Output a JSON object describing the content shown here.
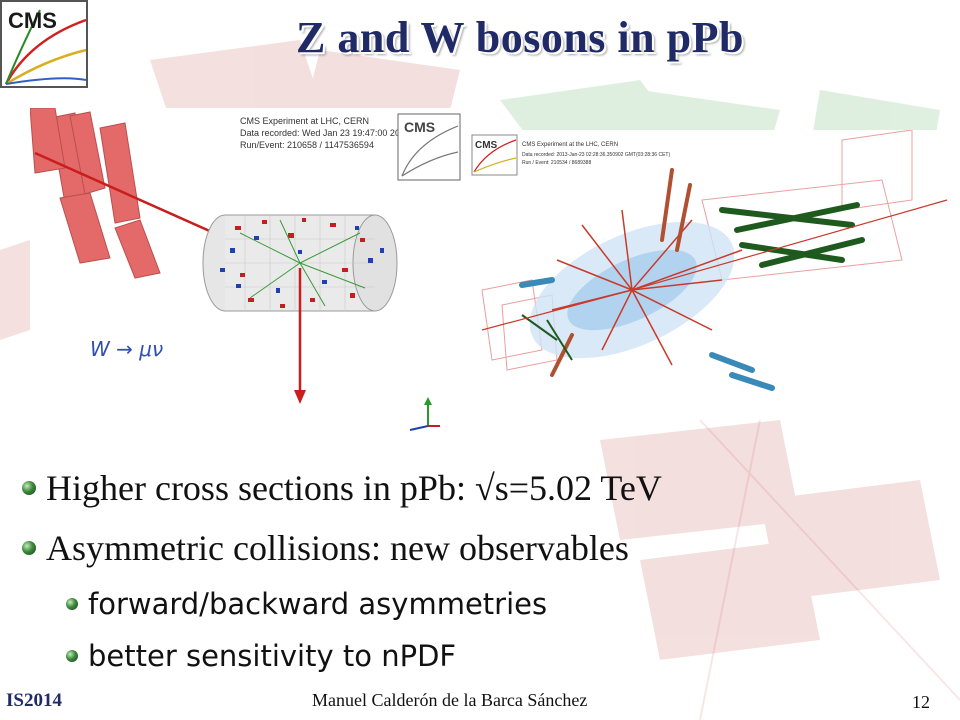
{
  "slide": {
    "title": "Z and W bosons in pPb",
    "logo_text": "CMS",
    "event_left": {
      "info_line1": "CMS Experiment at LHC, CERN",
      "info_line2": "Data recorded: Wed Jan 23 19:47:00 2013 CEST",
      "info_line3": "Run/Event: 210658 / 1147536594",
      "channel_label": "W → μν"
    },
    "event_right": {
      "info_line1": "CMS Experiment at the LHC, CERN",
      "info_line2": "Data recorded: 2013-Jan-23 02:28:36.350902 GMT(03:28:36 CET)",
      "info_line3": "Run / Event: 210534 / 8689388"
    },
    "bullets": [
      {
        "text": "Higher cross sections in pPb: √s=5.02 TeV",
        "level": 1
      },
      {
        "text": "Asymmetric collisions: new observables",
        "level": 1
      },
      {
        "text": "forward/backward asymmetries",
        "level": 2
      },
      {
        "text": "better sensitivity to nPDF",
        "level": 2
      }
    ],
    "footer": {
      "left": "IS2014",
      "center": "Manuel Calderón de la Barca Sánchez",
      "page_number": "12"
    }
  },
  "colors": {
    "title": "#1f2a66",
    "bullet_green": "#3a8a3a",
    "muon_red": "#c81e1e",
    "jet_green": "#1e5a1e"
  }
}
